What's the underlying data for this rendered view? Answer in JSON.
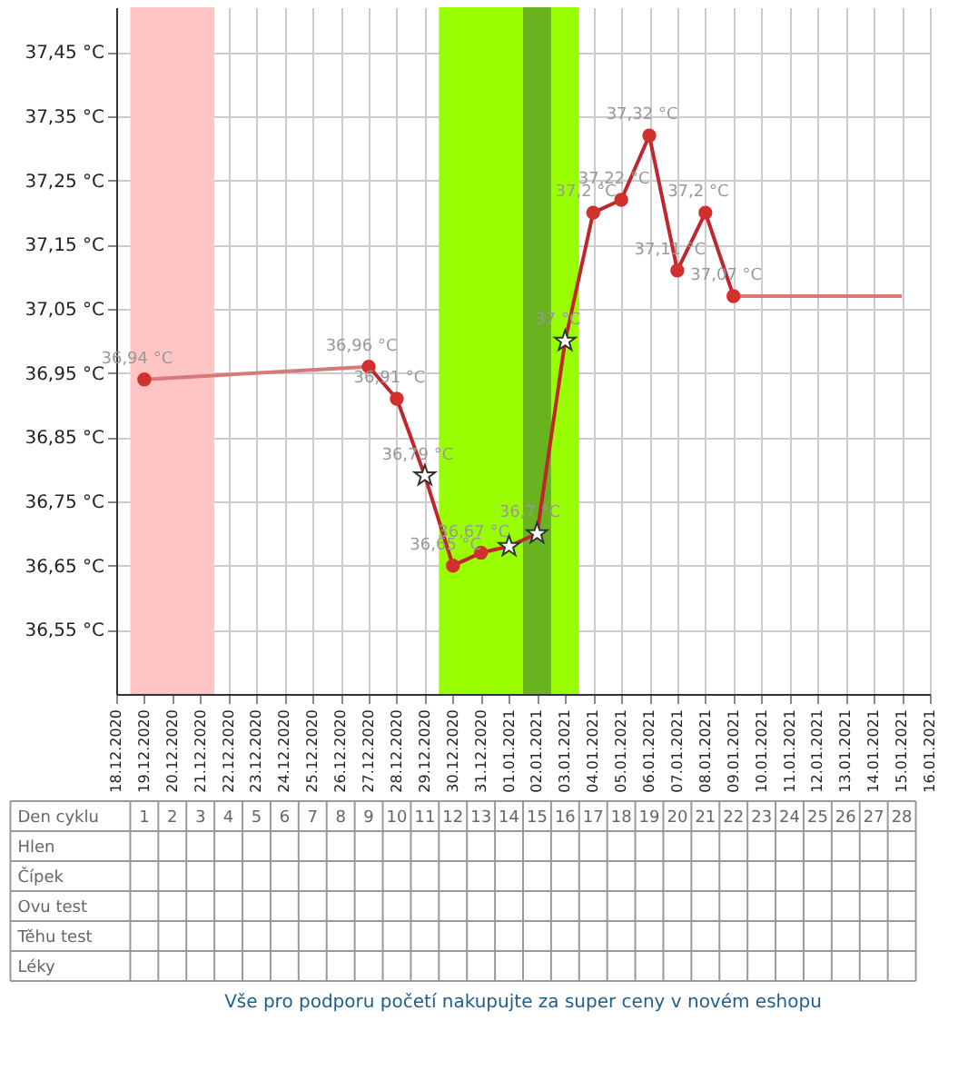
{
  "chart_data": {
    "type": "line",
    "x": [
      "2020-12-27",
      "2020-12-28",
      "2020-12-29",
      "2020-12-30",
      "2020-12-31",
      "2021-01-01",
      "2021-01-02",
      "2021-01-03",
      "2021-01-04",
      "2021-01-05",
      "2021-01-06",
      "2021-01-07",
      "2021-01-08",
      "2021-01-09"
    ],
    "series": [
      {
        "type": "line",
        "color": "#c0272d",
        "marker": "none",
        "values": [
          36.96,
          36.91,
          36.79,
          36.65,
          36.67,
          36.68,
          36.7,
          37.0,
          37.2,
          37.22,
          37.32,
          37.11,
          37.2,
          37.07
        ]
      },
      {
        "type": "line",
        "color": "#d9787b",
        "marker": "none",
        "x": [
          "2020-12-19",
          "2020-12-27",
          "2021-01-01",
          "2021-01-09",
          "2021-01-15"
        ],
        "values": [
          36.94,
          36.96,
          null,
          37.07,
          37.07
        ]
      },
      {
        "type": "scatter",
        "color": "#d32f2f",
        "marker": "circle",
        "x": [
          "2020-12-19",
          "2020-12-27",
          "2020-12-28",
          "2020-12-30",
          "2020-12-31",
          "2021-01-04",
          "2021-01-05",
          "2021-01-06",
          "2021-01-07",
          "2021-01-08",
          "2021-01-09"
        ],
        "values": [
          36.94,
          36.96,
          36.91,
          36.65,
          36.67,
          37.2,
          37.22,
          37.32,
          37.11,
          37.2,
          37.07
        ],
        "value_labels": [
          "36,94 °C",
          "36,96 °C",
          "36,91 °C",
          "36,65 °C",
          "36,67 °C",
          "37,2 °C",
          "37,22 °C",
          "37,32 °C",
          "37,11 °C",
          "37,2 °C",
          "37,07 °C"
        ]
      },
      {
        "type": "scatter",
        "color": "#ffffff",
        "marker": "star",
        "x": [
          "2020-12-29",
          "2021-01-01",
          "2021-01-02",
          "2021-01-03"
        ],
        "values": [
          36.79,
          36.68,
          36.7,
          37.0
        ],
        "value_labels": [
          "36,79 °C",
          null,
          "36,7 °C",
          "37 °C"
        ]
      }
    ],
    "bands": [
      {
        "axis": "x",
        "from": "2020-12-18T12:00",
        "to": "2020-12-21T12:00",
        "color": "#ffc4c4"
      },
      {
        "axis": "x",
        "from": "2020-12-29T12:00",
        "to": "2021-01-03T12:00",
        "color": "#99ff00"
      },
      {
        "axis": "x",
        "from": "2021-01-01T12:00",
        "to": "2021-01-02T12:00",
        "color": "#6ab320"
      }
    ],
    "xlim": [
      "2020-12-18",
      "2021-01-16"
    ],
    "xticks": [
      {
        "value": "2020-12-18",
        "label": "18.12.2020"
      },
      {
        "value": "2020-12-19",
        "label": "19.12.2020"
      },
      {
        "value": "2020-12-20",
        "label": "20.12.2020"
      },
      {
        "value": "2020-12-21",
        "label": "21.12.2020"
      },
      {
        "value": "2020-12-22",
        "label": "22.12.2020"
      },
      {
        "value": "2020-12-23",
        "label": "23.12.2020"
      },
      {
        "value": "2020-12-24",
        "label": "24.12.2020"
      },
      {
        "value": "2020-12-25",
        "label": "25.12.2020"
      },
      {
        "value": "2020-12-26",
        "label": "26.12.2020"
      },
      {
        "value": "2020-12-27",
        "label": "27.12.2020"
      },
      {
        "value": "2020-12-28",
        "label": "28.12.2020"
      },
      {
        "value": "2020-12-29",
        "label": "29.12.2020"
      },
      {
        "value": "2020-12-30",
        "label": "30.12.2020"
      },
      {
        "value": "2020-12-31",
        "label": "31.12.2020"
      },
      {
        "value": "2021-01-01",
        "label": "01.01.2021"
      },
      {
        "value": "2021-01-02",
        "label": "02.01.2021"
      },
      {
        "value": "2021-01-03",
        "label": "03.01.2021"
      },
      {
        "value": "2021-01-04",
        "label": "04.01.2021"
      },
      {
        "value": "2021-01-05",
        "label": "05.01.2021"
      },
      {
        "value": "2021-01-06",
        "label": "06.01.2021"
      },
      {
        "value": "2021-01-07",
        "label": "07.01.2021"
      },
      {
        "value": "2021-01-08",
        "label": "08.01.2021"
      },
      {
        "value": "2021-01-09",
        "label": "09.01.2021"
      },
      {
        "value": "2021-01-10",
        "label": "10.01.2021"
      },
      {
        "value": "2021-01-11",
        "label": "11.01.2021"
      },
      {
        "value": "2021-01-12",
        "label": "12.01.2021"
      },
      {
        "value": "2021-01-13",
        "label": "13.01.2021"
      },
      {
        "value": "2021-01-14",
        "label": "14.01.2021"
      },
      {
        "value": "2021-01-15",
        "label": "15.01.2021"
      },
      {
        "value": "2021-01-16",
        "label": "16.01.2021"
      }
    ],
    "x2label": "Den cyklu",
    "x2lim": [
      "2020-12-14T05:30",
      "2021-01-15T12:00"
    ],
    "x2ticks": [
      {
        "value": "2020-12-19",
        "label": "1"
      },
      {
        "value": "2020-12-20",
        "label": "2"
      },
      {
        "value": "2020-12-21",
        "label": "3"
      },
      {
        "value": "2020-12-22",
        "label": "4"
      },
      {
        "value": "2020-12-23",
        "label": "5"
      },
      {
        "value": "2020-12-24",
        "label": "6"
      },
      {
        "value": "2020-12-25",
        "label": "7"
      },
      {
        "value": "2020-12-26",
        "label": "8"
      },
      {
        "value": "2020-12-27",
        "label": "9"
      },
      {
        "value": "2020-12-28",
        "label": "10"
      },
      {
        "value": "2020-12-29",
        "label": "11"
      },
      {
        "value": "2020-12-30",
        "label": "12"
      },
      {
        "value": "2020-12-31",
        "label": "13"
      },
      {
        "value": "2021-01-01",
        "label": "14"
      },
      {
        "value": "2021-01-02",
        "label": "15"
      },
      {
        "value": "2021-01-03",
        "label": "16"
      },
      {
        "value": "2021-01-04",
        "label": "17"
      },
      {
        "value": "2021-01-05",
        "label": "18"
      },
      {
        "value": "2021-01-06",
        "label": "19"
      },
      {
        "value": "2021-01-07",
        "label": "20"
      },
      {
        "value": "2021-01-08",
        "label": "21"
      },
      {
        "value": "2021-01-09",
        "label": "22"
      },
      {
        "value": "2021-01-10",
        "label": "23"
      },
      {
        "value": "2021-01-11",
        "label": "24"
      },
      {
        "value": "2021-01-12",
        "label": "25"
      },
      {
        "value": "2021-01-13",
        "label": "26"
      },
      {
        "value": "2021-01-14",
        "label": "27"
      },
      {
        "value": "2021-01-15",
        "label": "28"
      }
    ],
    "ylim": [
      36.45,
      37.52
    ],
    "yticks": [
      {
        "value": 36.55,
        "label": "36,55 °C"
      },
      {
        "value": 36.65,
        "label": "36,65 °C"
      },
      {
        "value": 36.75,
        "label": "36,75 °C"
      },
      {
        "value": 36.85,
        "label": "36,85 °C"
      },
      {
        "value": 36.95,
        "label": "36,95 °C"
      },
      {
        "value": 37.05,
        "label": "37,05 °C"
      },
      {
        "value": 37.15,
        "label": "37,15 °C"
      },
      {
        "value": 37.25,
        "label": "37,25 °C"
      },
      {
        "value": 37.35,
        "label": "37,35 °C"
      },
      {
        "value": 37.45,
        "label": "37,45 °C"
      }
    ],
    "grid": true,
    "annotations": [
      "Hlen",
      "Čípek",
      "Ovu test",
      "Těhu test",
      "Léky",
      "Vše pro podporu početí nakupujte za super ceny v novém eshopu"
    ]
  }
}
